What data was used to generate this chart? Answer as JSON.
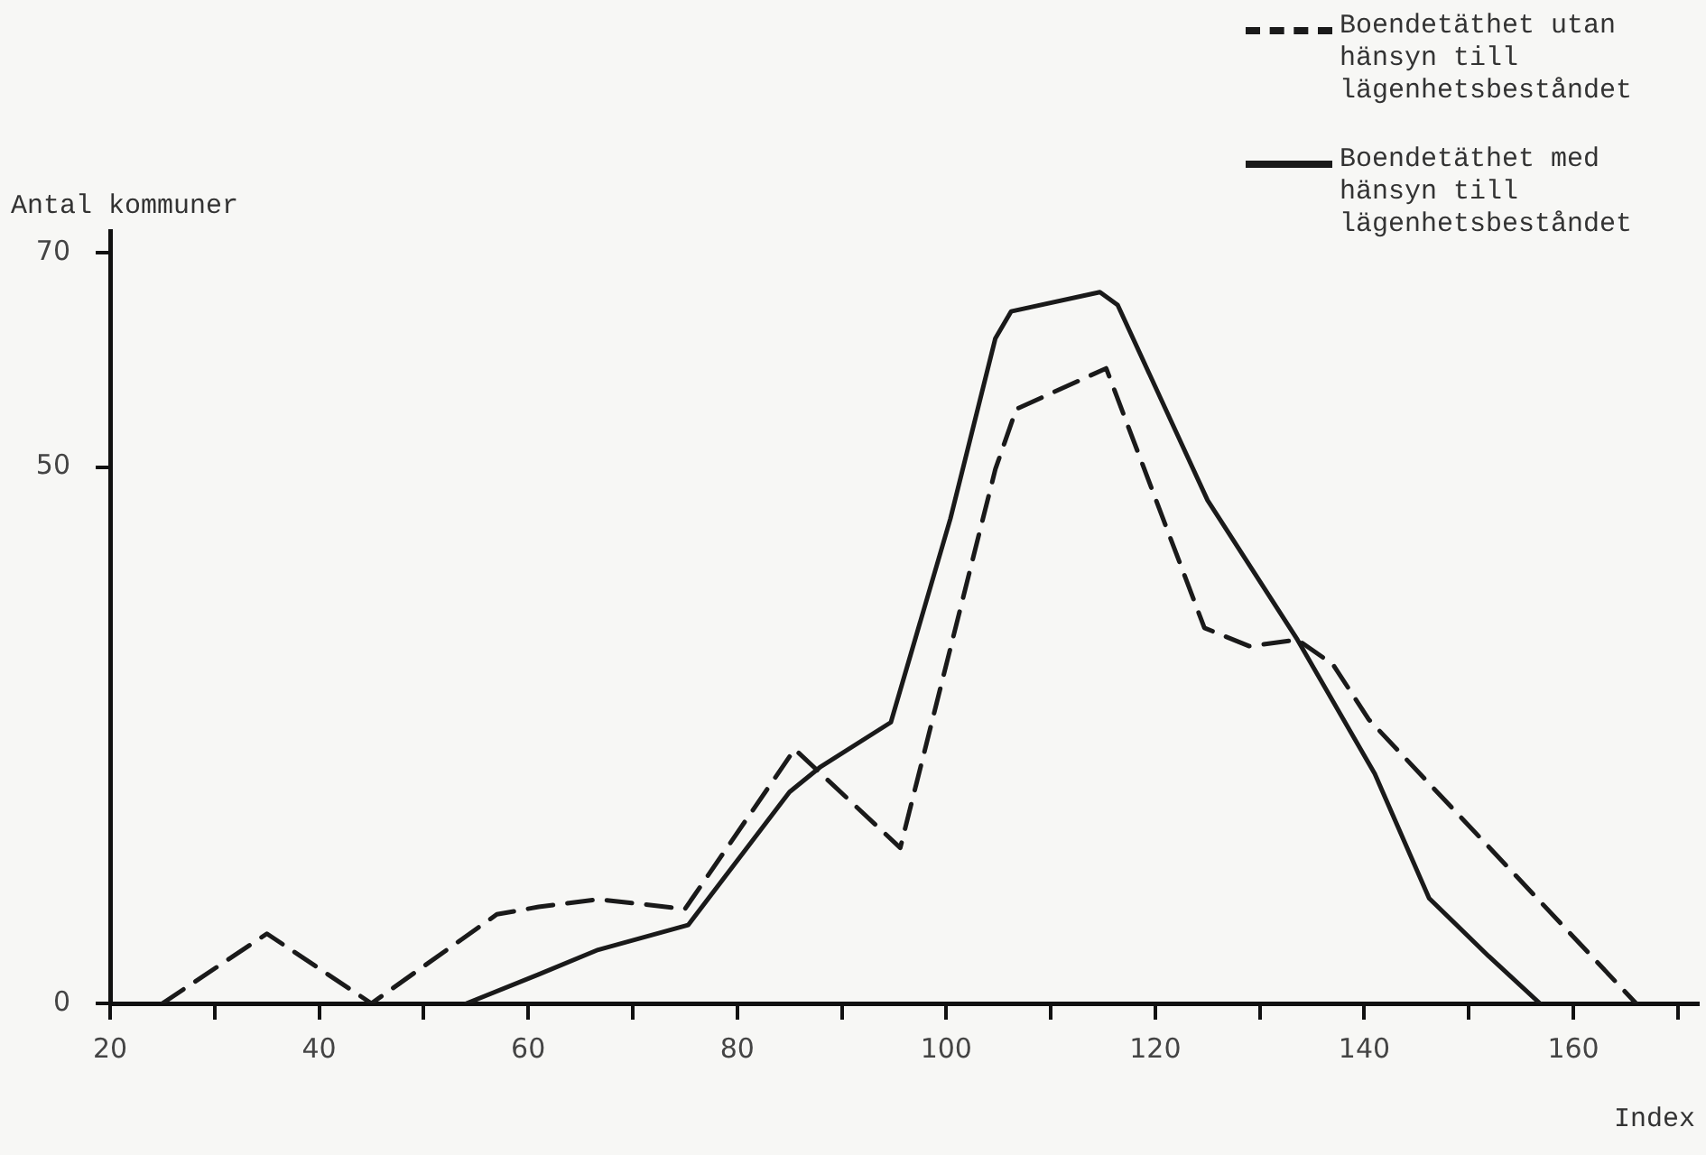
{
  "chart_data": {
    "type": "line",
    "ylabel": "Antal kommuner",
    "xlabel": "Index",
    "xlim": [
      20,
      172
    ],
    "ylim": [
      0,
      72
    ],
    "xticks": [
      20,
      {
        "value": 30,
        "label": null
      },
      40,
      {
        "value": 50,
        "label": null
      },
      60,
      {
        "value": 70,
        "label": null
      },
      80,
      {
        "value": 90,
        "label": null
      },
      100,
      {
        "value": 110,
        "label": null
      },
      120,
      {
        "value": 130,
        "label": null
      },
      140,
      {
        "value": 150,
        "label": null
      },
      160,
      {
        "value": 170,
        "label": null
      }
    ],
    "yticks": [
      0,
      50,
      70
    ],
    "grid": false,
    "legend": "top right",
    "marker": "none",
    "series": [
      {
        "name": "Boendetäthet utan hänsyn till lägenhetsbeståndet",
        "color": "#1a1a1a",
        "line_style": "dashed",
        "x": [
          25,
          35,
          45,
          57,
          61,
          66.7,
          75,
          85.5,
          95.6,
          104.7,
          106.7,
          115.3,
          124.7,
          129,
          133.6,
          137,
          140.4,
          166
        ],
        "values": [
          0,
          6.5,
          0,
          8.3,
          9,
          9.7,
          8.8,
          23.7,
          14.5,
          49.8,
          55.4,
          59.2,
          35,
          33.3,
          33.9,
          31.6,
          26.5,
          0
        ]
      },
      {
        "name": "Boendetäthet med hänsyn till lägenhetsbeståndet",
        "color": "#1a1a1a",
        "line_style": "solid",
        "x": [
          54.1,
          61,
          66.7,
          75.3,
          85,
          87.9,
          94.7,
          100.4,
          104.7,
          106.2,
          114.7,
          116.4,
          125,
          133.6,
          141,
          146.2,
          151.9,
          156.8
        ],
        "values": [
          0,
          2.7,
          5,
          7.3,
          19.7,
          22,
          26.2,
          45.2,
          62,
          64.5,
          66.3,
          65.1,
          46.9,
          33.9,
          21.4,
          9.8,
          4.4,
          0
        ]
      }
    ]
  }
}
